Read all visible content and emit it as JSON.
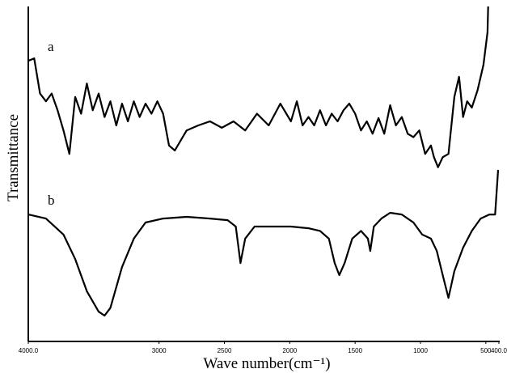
{
  "chart_data": {
    "type": "line",
    "x_label": "Wave number(cm⁻¹)",
    "y_label": "Transmittance",
    "xlim": [
      4000,
      400
    ],
    "ylim": [
      0,
      100
    ],
    "xticks": [
      {
        "value": 4000,
        "label": "4000.0"
      },
      3000,
      2500,
      2000,
      1500,
      1000,
      500,
      {
        "value": 400,
        "label": "400.0"
      }
    ],
    "series": [
      {
        "name": "a",
        "color": "#000000",
        "x": [
          4000,
          3955,
          3910,
          3865,
          3821,
          3776,
          3731,
          3686,
          3641,
          3596,
          3552,
          3507,
          3462,
          3417,
          3372,
          3327,
          3283,
          3238,
          3193,
          3148,
          3103,
          3058,
          3013,
          2969,
          2924,
          2879,
          2789,
          2700,
          2610,
          2520,
          2430,
          2341,
          2251,
          2161,
          2072,
          1991,
          1946,
          1902,
          1857,
          1813,
          1768,
          1723,
          1679,
          1634,
          1589,
          1545,
          1500,
          1455,
          1411,
          1366,
          1321,
          1277,
          1232,
          1188,
          1143,
          1098,
          1054,
          1009,
          964,
          920,
          897,
          866,
          830,
          786,
          741,
          705,
          674,
          643,
          607,
          563,
          518,
          487,
          482
        ],
        "values": [
          83.8,
          84.5,
          74,
          71.7,
          74,
          69,
          63,
          56,
          73,
          68,
          77,
          69,
          74,
          67,
          71.7,
          64.5,
          71,
          65.7,
          71.7,
          67,
          71,
          68,
          71.7,
          68,
          58.5,
          57,
          63,
          64.5,
          65.7,
          63.8,
          65.7,
          63,
          68,
          64.5,
          71,
          65.7,
          71.7,
          64.5,
          67,
          64.5,
          69,
          64.5,
          68,
          65.7,
          69,
          71,
          68,
          63,
          65.7,
          62,
          66.7,
          62,
          70.5,
          64.5,
          67,
          62,
          61,
          63,
          56,
          58.5,
          55,
          52,
          55,
          56,
          73,
          79,
          67,
          71.7,
          69.8,
          75,
          82.6,
          92.3,
          100
        ]
      },
      {
        "name": "b",
        "color": "#000000",
        "x": [
          4000,
          3865,
          3731,
          3641,
          3552,
          3462,
          3417,
          3372,
          3283,
          3193,
          3103,
          2969,
          2789,
          2610,
          2475,
          2413,
          2377,
          2341,
          2269,
          2161,
          1991,
          1857,
          1768,
          1701,
          1656,
          1621,
          1580,
          1522,
          1455,
          1402,
          1384,
          1357,
          1299,
          1232,
          1143,
          1054,
          987,
          920,
          875,
          830,
          786,
          741,
          674,
          607,
          540,
          473,
          429,
          406
        ],
        "values": [
          37.9,
          36.7,
          31.9,
          24.6,
          15,
          8.9,
          7.7,
          10,
          22.2,
          30.7,
          35.5,
          36.7,
          37.2,
          36.7,
          36.2,
          34.3,
          23.4,
          30.7,
          34.3,
          34.3,
          34.3,
          33.8,
          33,
          30.7,
          23.4,
          19.8,
          23.4,
          30.7,
          33,
          30.7,
          27,
          34.3,
          36.7,
          38.4,
          37.9,
          35.5,
          31.9,
          30.7,
          27,
          19.8,
          13,
          21,
          28,
          33,
          36.7,
          37.9,
          37.9,
          51.2
        ]
      }
    ]
  }
}
